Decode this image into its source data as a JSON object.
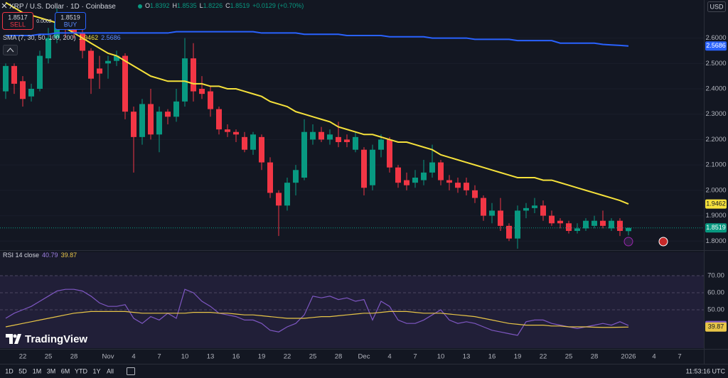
{
  "header": {
    "symbol": "XRP / U.S. Dollar · 1D · Coinbase",
    "ohlc_labels": [
      "O",
      "H",
      "L",
      "C"
    ],
    "change": "+0.0129 (+0.70%)",
    "currency": "USD",
    "sell_price": "1.8517",
    "sell": "SELL",
    "buy_price": "1.8519",
    "buy": "BUY",
    "spread": "0.0002"
  },
  "chart_data": [
    {
      "type": "candlestick",
      "indicator": "SMA (7, 30, 50, 100, 200)",
      "categories": [
        null,
        null,
        "22",
        null,
        null,
        "25",
        null,
        null,
        "28",
        null,
        null,
        null,
        "Nov",
        null,
        null,
        "4",
        null,
        null,
        "7",
        null,
        null,
        "10",
        null,
        null,
        "13",
        null,
        null,
        "16",
        null,
        null,
        "19",
        null,
        null,
        "22",
        null,
        null,
        "25",
        null,
        null,
        "28",
        null,
        null,
        "Dec",
        null,
        null,
        "4",
        null,
        null,
        "7",
        null,
        null,
        "10",
        null,
        null,
        "13",
        null,
        null,
        "16",
        null,
        null,
        "19",
        null,
        null,
        "22",
        null,
        null,
        "25",
        null,
        null,
        "28",
        null,
        null,
        null,
        "2026",
        null,
        null,
        "4",
        null,
        null,
        "7"
      ],
      "open": [
        2.39,
        2.49,
        2.43,
        2.37,
        2.4,
        2.52,
        2.6,
        2.66,
        2.66,
        2.62,
        2.55,
        2.48,
        2.5,
        2.51,
        2.53,
        2.31,
        2.21,
        2.34,
        2.22,
        2.31,
        2.29,
        2.35,
        2.52,
        2.4,
        2.39,
        2.32,
        2.24,
        2.23,
        2.21,
        2.16,
        2.21,
        2.11,
        1.99,
        1.94,
        2.03,
        2.05,
        2.2,
        2.23,
        2.2,
        2.21,
        2.2,
        2.16,
        2.16,
        2.02,
        2.16,
        2.2,
        2.09,
        2.04,
        2.03,
        2.04,
        2.07,
        2.11,
        2.04,
        2.03,
        2.03,
        2.0,
        1.97,
        1.9,
        1.92,
        1.86,
        1.81,
        1.92,
        1.93,
        1.94,
        1.9,
        1.88,
        1.87,
        1.84,
        1.85,
        1.86,
        1.88,
        1.85,
        1.88,
        1.8392,
        null,
        null,
        null,
        null,
        null,
        null
      ],
      "high": [
        2.5,
        2.5,
        2.45,
        2.42,
        2.55,
        2.64,
        2.72,
        2.7,
        2.7,
        2.64,
        2.56,
        2.53,
        2.53,
        2.55,
        2.54,
        2.33,
        2.36,
        2.4,
        2.33,
        2.32,
        2.4,
        2.6,
        2.58,
        2.45,
        2.41,
        2.33,
        2.26,
        2.24,
        2.23,
        2.23,
        2.22,
        2.13,
        2.0,
        2.05,
        2.1,
        2.28,
        2.26,
        2.25,
        2.24,
        2.27,
        2.22,
        2.23,
        2.17,
        2.18,
        2.22,
        2.21,
        2.1,
        2.07,
        2.08,
        2.12,
        2.18,
        2.12,
        2.06,
        2.05,
        2.05,
        2.02,
        1.98,
        1.95,
        1.97,
        1.87,
        1.94,
        1.95,
        1.97,
        1.96,
        1.92,
        1.89,
        1.88,
        1.87,
        1.89,
        1.9,
        1.92,
        1.89,
        1.89,
        1.8535,
        null,
        null,
        null,
        null,
        null,
        null
      ],
      "low": [
        2.36,
        2.38,
        2.33,
        2.35,
        2.39,
        2.5,
        2.58,
        2.6,
        2.6,
        2.52,
        2.38,
        2.4,
        2.44,
        2.49,
        2.28,
        2.07,
        2.18,
        2.2,
        2.15,
        2.26,
        2.27,
        2.33,
        2.35,
        2.36,
        2.29,
        2.22,
        2.21,
        2.19,
        2.15,
        2.14,
        2.08,
        1.97,
        1.82,
        1.92,
        1.98,
        2.04,
        2.18,
        2.19,
        2.18,
        2.17,
        2.17,
        2.15,
        1.98,
        2.0,
        2.13,
        2.07,
        2.01,
        2.0,
        2.01,
        2.02,
        2.05,
        2.02,
        2.0,
        1.99,
        1.98,
        1.95,
        1.88,
        1.87,
        1.84,
        1.8,
        1.77,
        1.89,
        1.91,
        1.88,
        1.86,
        1.85,
        1.83,
        1.83,
        1.84,
        1.85,
        1.85,
        1.84,
        1.82,
        1.8226,
        null,
        null,
        null,
        null,
        null,
        null
      ],
      "close": [
        2.49,
        2.42,
        2.36,
        2.4,
        2.53,
        2.6,
        2.66,
        2.64,
        2.62,
        2.55,
        2.44,
        2.46,
        2.51,
        2.53,
        2.31,
        2.21,
        2.34,
        2.22,
        2.31,
        2.29,
        2.35,
        2.52,
        2.39,
        2.38,
        2.32,
        2.24,
        2.23,
        2.22,
        2.16,
        2.22,
        2.11,
        1.99,
        1.94,
        2.03,
        2.08,
        2.23,
        2.23,
        2.2,
        2.22,
        2.19,
        2.19,
        2.21,
        2.01,
        2.16,
        2.2,
        2.09,
        2.03,
        2.02,
        2.05,
        2.07,
        2.11,
        2.04,
        2.03,
        2.01,
        2.0,
        1.97,
        1.9,
        1.92,
        1.86,
        1.81,
        1.92,
        1.93,
        1.94,
        1.9,
        1.87,
        1.87,
        1.84,
        1.85,
        1.88,
        1.88,
        1.86,
        1.88,
        1.84,
        1.8519,
        null,
        null,
        null,
        null,
        null,
        null
      ],
      "up_color": "#089981",
      "down_color": "#f23645",
      "series": [
        {
          "color": "#f5e13b",
          "values": [
            2.74,
            2.72,
            2.7,
            2.69,
            2.68,
            2.67,
            2.66,
            2.64,
            2.62,
            2.6,
            2.58,
            2.56,
            2.54,
            2.53,
            2.51,
            2.49,
            2.47,
            2.45,
            2.44,
            2.43,
            2.43,
            2.43,
            2.42,
            2.42,
            2.41,
            2.41,
            2.4,
            2.4,
            2.39,
            2.38,
            2.37,
            2.35,
            2.34,
            2.33,
            2.31,
            2.3,
            2.29,
            2.28,
            2.27,
            2.25,
            2.24,
            2.23,
            2.22,
            2.22,
            2.21,
            2.2,
            2.19,
            2.19,
            2.18,
            2.17,
            2.16,
            2.14,
            2.13,
            2.12,
            2.11,
            2.1,
            2.09,
            2.08,
            2.07,
            2.06,
            2.05,
            2.05,
            2.05,
            2.04,
            2.04,
            2.03,
            2.02,
            2.01,
            2.0,
            1.99,
            1.98,
            1.97,
            1.96,
            1.9462,
            null,
            null,
            null,
            null,
            null,
            null
          ]
        },
        {
          "color": "#2962ff",
          "values": [
            2.61,
            2.61,
            2.61,
            2.61,
            2.615,
            2.615,
            2.62,
            2.62,
            2.62,
            2.62,
            2.62,
            2.62,
            2.62,
            2.62,
            2.62,
            2.62,
            2.62,
            2.62,
            2.62,
            2.62,
            2.625,
            2.625,
            2.625,
            2.625,
            2.625,
            2.625,
            2.625,
            2.625,
            2.625,
            2.625,
            2.62,
            2.62,
            2.62,
            2.62,
            2.62,
            2.615,
            2.615,
            2.615,
            2.615,
            2.615,
            2.61,
            2.61,
            2.61,
            2.61,
            2.61,
            2.605,
            2.605,
            2.605,
            2.605,
            2.605,
            2.6,
            2.6,
            2.6,
            2.6,
            2.6,
            2.595,
            2.595,
            2.595,
            2.595,
            2.595,
            2.59,
            2.59,
            2.59,
            2.59,
            2.59,
            2.58,
            2.58,
            2.58,
            2.58,
            2.58,
            2.575,
            2.573,
            2.571,
            2.5686,
            null,
            null,
            null,
            null,
            null,
            null
          ]
        }
      ],
      "ylim": [
        1.77,
        2.75
      ],
      "yticks": [
        {
          "value": 2.6,
          "label": "2.6000"
        },
        {
          "value": 2.5,
          "label": "2.5000"
        },
        {
          "value": 2.4,
          "label": "2.4000"
        },
        {
          "value": 2.3,
          "label": "2.3000"
        },
        {
          "value": 2.2,
          "label": "2.2000"
        },
        {
          "value": 2.1,
          "label": "2.1000"
        },
        {
          "value": 2.0,
          "label": "2.0000"
        },
        {
          "value": 1.9,
          "label": "1.9000"
        },
        {
          "value": 1.8,
          "label": "1.8000"
        }
      ],
      "grid": true
    },
    {
      "type": "line",
      "indicator": "RSI 14 close",
      "series": [
        {
          "color": "#7e57c2",
          "values": [
            45,
            48,
            50,
            52,
            55,
            58,
            61,
            62,
            62,
            61,
            58,
            54,
            52,
            52,
            53,
            45,
            42,
            46,
            44,
            48,
            45,
            62,
            60,
            55,
            52,
            48,
            47,
            46,
            44,
            44,
            42,
            38,
            37,
            40,
            42,
            47,
            58,
            57,
            58,
            56,
            57,
            55,
            56,
            44,
            55,
            52,
            44,
            42,
            42,
            44,
            47,
            50,
            44,
            42,
            43,
            42,
            40,
            38,
            37,
            36,
            35,
            43,
            44,
            44,
            42,
            41,
            40,
            39,
            40,
            41,
            42,
            41,
            43,
            40.79,
            null,
            null,
            null,
            null,
            null,
            null
          ]
        },
        {
          "color": "#e8c547",
          "values": [
            40,
            41,
            42,
            43,
            44,
            45,
            46,
            47,
            48,
            48.5,
            49,
            49,
            49,
            49,
            49,
            48.5,
            48,
            48,
            48,
            48,
            48,
            48,
            48.5,
            48.5,
            48.5,
            48,
            48,
            47.5,
            47,
            47,
            46.5,
            46,
            45.5,
            45,
            45,
            45,
            45.5,
            46,
            46,
            46.5,
            47,
            47.5,
            48,
            48,
            48.5,
            49,
            49,
            49,
            48.5,
            48,
            48,
            48,
            47.5,
            47,
            46.5,
            46,
            45,
            44,
            43,
            42,
            41.5,
            41,
            41,
            41,
            40.5,
            40.5,
            40,
            40,
            40,
            39.8,
            39.7,
            39.7,
            39.8,
            39.87,
            null,
            null,
            null,
            null,
            null,
            null
          ]
        }
      ],
      "ylim": [
        27.5,
        83.75
      ],
      "yticks": [
        {
          "value": 70,
          "label": "70.00"
        },
        {
          "value": 60,
          "label": "60.00"
        },
        {
          "value": 50,
          "label": "50.00"
        }
      ]
    }
  ],
  "footer": {
    "ranges": [
      "1D",
      "5D",
      "1M",
      "3M",
      "6M",
      "YTD",
      "1Y",
      "All"
    ],
    "time": "11:53:16 UTC",
    "logo": "TradingView"
  }
}
